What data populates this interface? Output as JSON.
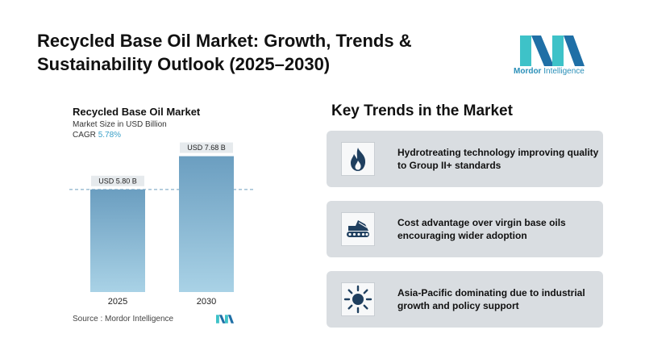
{
  "header": {
    "title": "Recycled Base Oil Market: Growth, Trends & Sustainability Outlook (2025–2030)",
    "logo_brand": "Mordor",
    "logo_suffix": "Intelligence"
  },
  "chart_panel": {
    "title": "Recycled Base Oil Market",
    "subtitle": "Market Size in USD Billion",
    "cagr_label": "CAGR",
    "cagr_value": "5.78%",
    "source": "Source :  Mordor Intelligence"
  },
  "chart_data": {
    "type": "bar",
    "title": "Recycled Base Oil Market",
    "ylabel": "Market Size in USD Billion",
    "categories": [
      "2025",
      "2030"
    ],
    "values": [
      5.8,
      7.68
    ],
    "data_labels": [
      "USD 5.80 B",
      "USD 7.68 B"
    ],
    "ylim": [
      0,
      8.3
    ],
    "reference_line": 5.8,
    "grid": false,
    "bar_color_top": "#6b9ec0",
    "bar_color_bottom": "#a9d2e6"
  },
  "trends": {
    "title": "Key Trends in the Market",
    "items": [
      {
        "text": "Hydrotreating technology improving quality to Group II+ standards",
        "icon": "flame-icon"
      },
      {
        "text": "Cost advantage over virgin base oils encouraging wider adoption",
        "icon": "excavator-icon"
      },
      {
        "text": "Asia-Pacific dominating due to industrial growth and policy support",
        "icon": "sun-icon"
      }
    ]
  },
  "colors": {
    "accent": "#2a8fb8",
    "icon_dark": "#1f3f5f",
    "card_bg": "#d9dde1"
  }
}
